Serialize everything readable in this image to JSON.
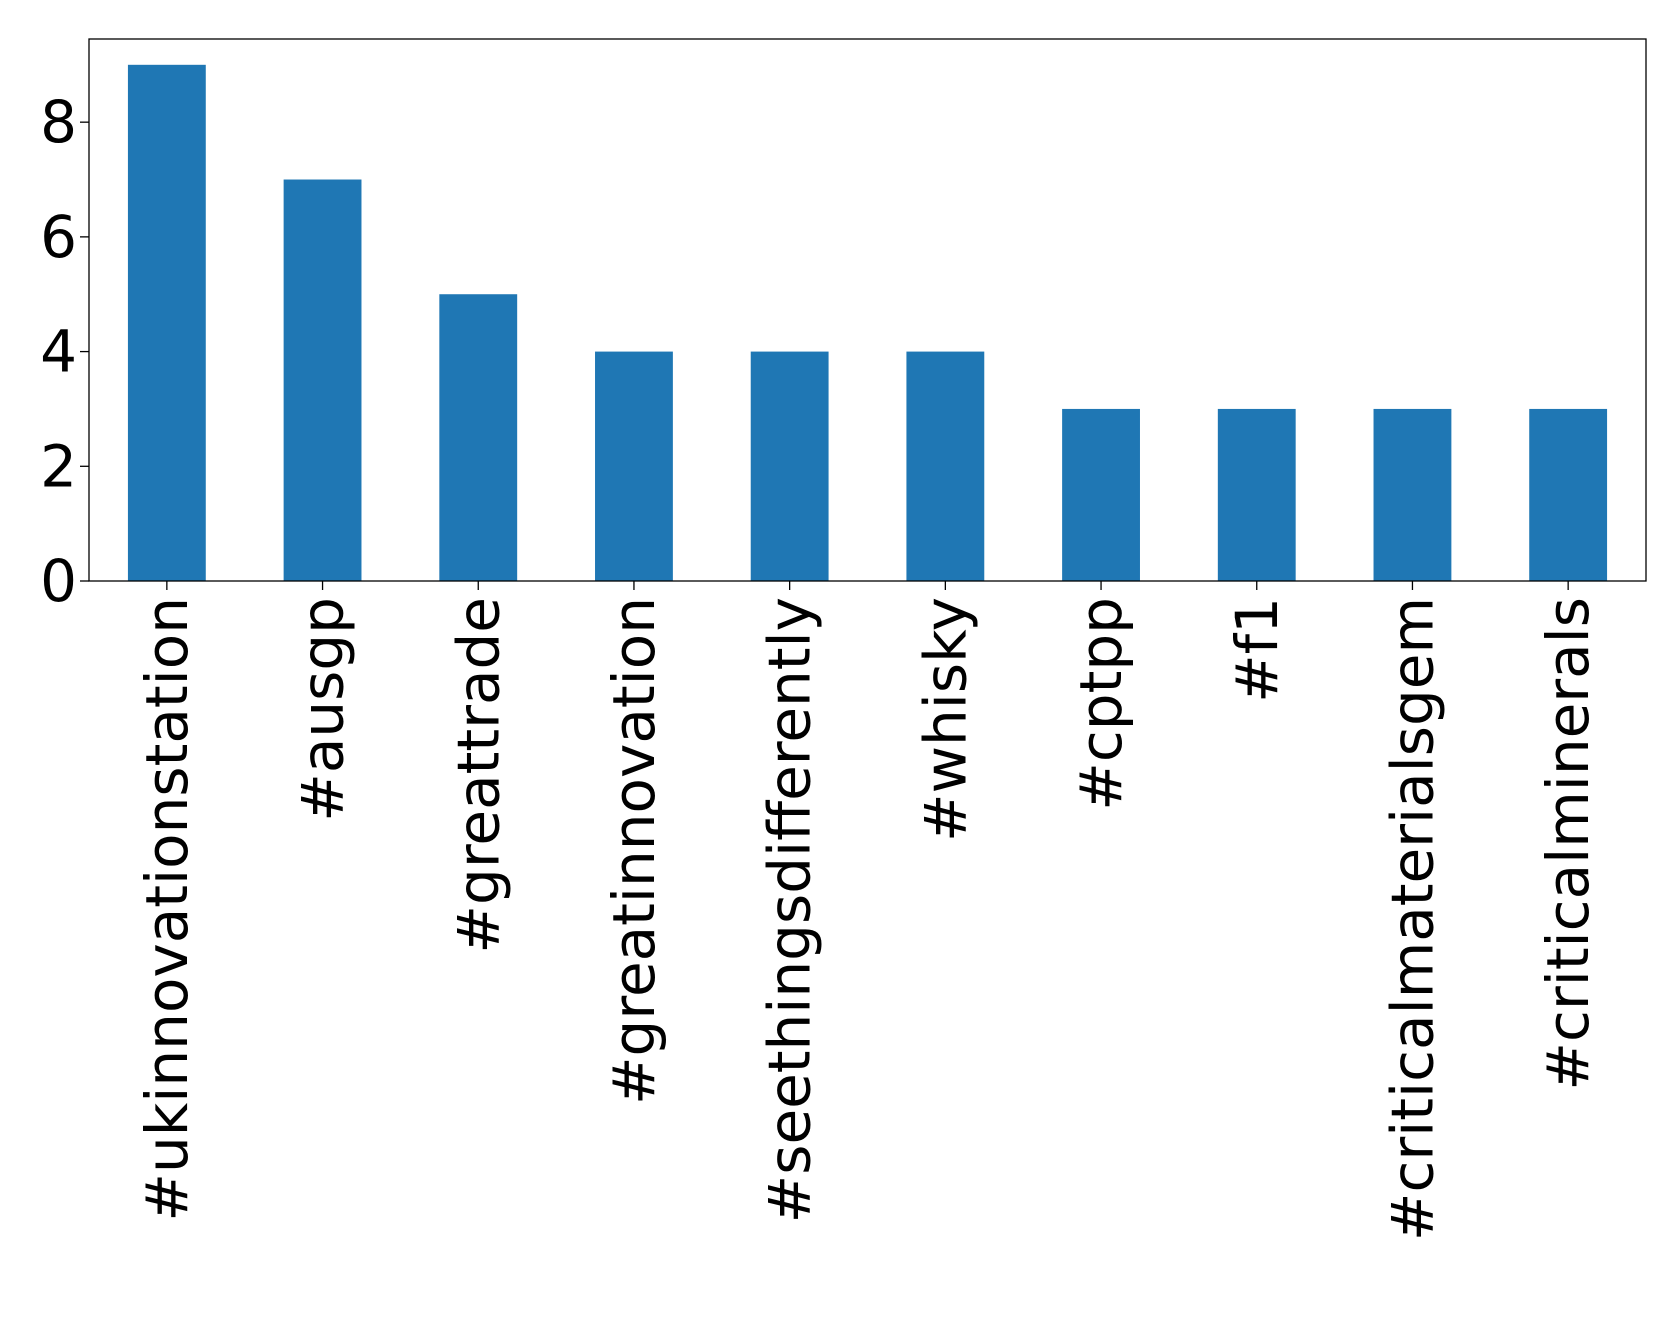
{
  "chart_data": {
    "type": "bar",
    "title": "",
    "xlabel": "",
    "ylabel": "",
    "categories": [
      "#ukinnovationstation",
      "#ausgp",
      "#greattrade",
      "#greatinnovation",
      "#seethingsdifferently",
      "#whisky",
      "#cptpp",
      "#f1",
      "#criticalmaterialsgem",
      "#criticalminerals"
    ],
    "values": [
      9,
      7,
      5,
      4,
      4,
      4,
      3,
      3,
      3,
      3
    ],
    "ylim": [
      0,
      9.45
    ],
    "yticks": [
      0,
      2,
      4,
      6,
      8
    ],
    "grid": false,
    "legend": "none",
    "bar_color": "#1f77b4"
  }
}
